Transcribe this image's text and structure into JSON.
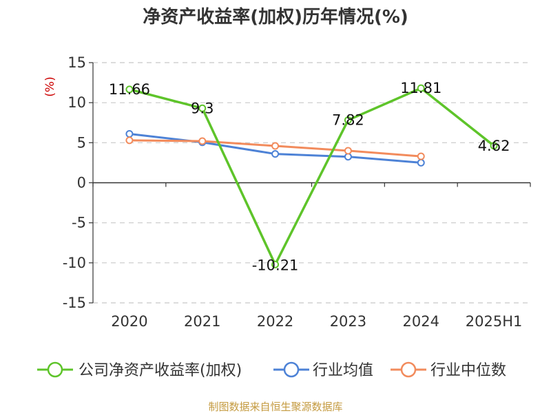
{
  "chart_data": {
    "type": "line",
    "title": "净资产收益率(加权)历年情况(%)",
    "ylabel": "(%)",
    "categories": [
      "2020",
      "2021",
      "2022",
      "2023",
      "2024",
      "2025H1"
    ],
    "y_ticks": [
      15,
      10,
      5,
      0,
      -5,
      -10,
      -15
    ],
    "ylim": [
      -15,
      15
    ],
    "grid": true,
    "legend_position": "bottom",
    "series": [
      {
        "name": "公司净资产收益率(加权)",
        "color": "#5ec42a",
        "values": [
          11.66,
          9.3,
          -10.21,
          7.82,
          11.81,
          4.62
        ],
        "labels": [
          "11.66",
          "9.3",
          "-10.21",
          "7.82",
          "11.81",
          "4.62"
        ]
      },
      {
        "name": "行业均值",
        "color": "#4d82d6",
        "values": [
          6.1,
          5.05,
          3.6,
          3.25,
          2.5,
          null
        ]
      },
      {
        "name": "行业中位数",
        "color": "#f28b5c",
        "values": [
          5.3,
          5.2,
          4.6,
          4.0,
          3.3,
          null
        ]
      }
    ]
  },
  "source": "制图数据来自恒生聚源数据库"
}
